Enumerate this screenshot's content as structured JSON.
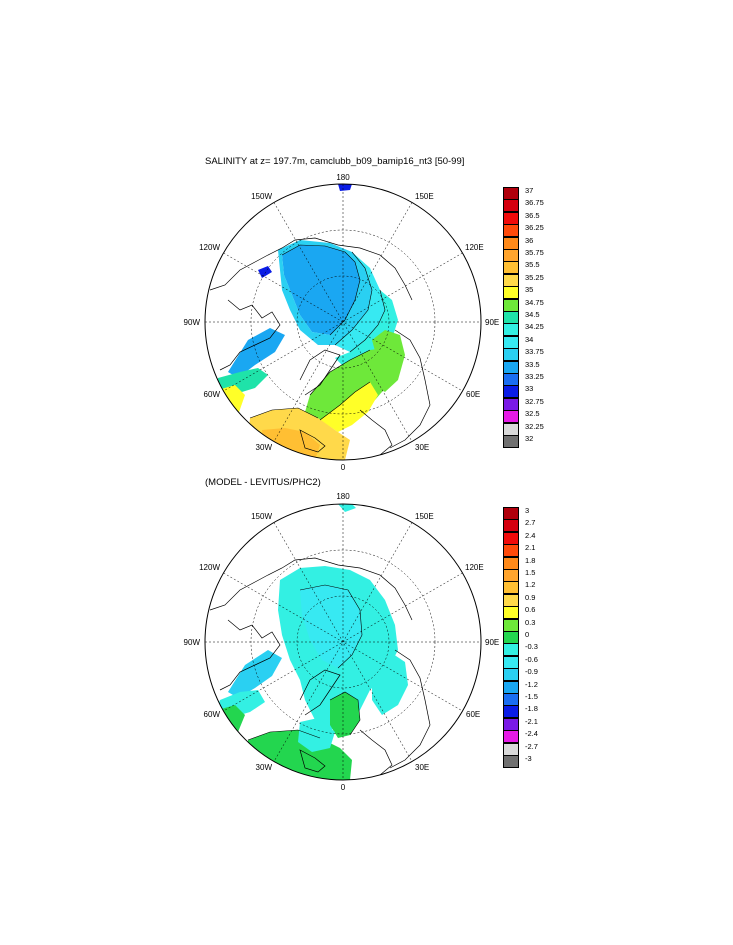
{
  "panels": [
    {
      "id": "top",
      "title": "SALINITY at z= 197.7m, camclubb_b09_bamip16_nt3 [50-99]",
      "longitude_labels": [
        "180",
        "150E",
        "120E",
        "90E",
        "60E",
        "30E",
        "0",
        "30W",
        "60W",
        "90W",
        "120W",
        "150W"
      ],
      "legend": {
        "levels": [
          "37",
          "36.75",
          "36.5",
          "36.25",
          "36",
          "35.75",
          "35.5",
          "35.25",
          "35",
          "34.75",
          "34.5",
          "34.25",
          "34",
          "33.75",
          "33.5",
          "33.25",
          "33",
          "32.75",
          "32.5",
          "32.25",
          "32"
        ],
        "colors": [
          "#b0000c",
          "#d4000f",
          "#f00b0b",
          "#ff4a0a",
          "#ff8a1a",
          "#ffa42d",
          "#ffbf33",
          "#ffd94a",
          "#ffff28",
          "#6ee83a",
          "#1fe3a9",
          "#33f0e3",
          "#37e9f2",
          "#2ad0f2",
          "#1aa7f2",
          "#1a6ef2",
          "#0a1ce6",
          "#7a1ae6",
          "#e61ae6",
          "#d9d9d9",
          "#707070"
        ]
      }
    },
    {
      "id": "bottom",
      "title": "(MODEL - LEVITUS/PHC2)",
      "longitude_labels": [
        "180",
        "150E",
        "120E",
        "90E",
        "60E",
        "30E",
        "0",
        "30W",
        "60W",
        "90W",
        "120W",
        "150W"
      ],
      "legend": {
        "levels": [
          "3",
          "2.7",
          "2.4",
          "2.1",
          "1.8",
          "1.5",
          "1.2",
          "0.9",
          "0.6",
          "0.3",
          "0",
          "-0.3",
          "-0.6",
          "-0.9",
          "-1.2",
          "-1.5",
          "-1.8",
          "-2.1",
          "-2.4",
          "-2.7",
          "-3"
        ],
        "colors": [
          "#b0000c",
          "#d4000f",
          "#f00b0b",
          "#ff4a0a",
          "#ff8a1a",
          "#ffa42d",
          "#ffbf33",
          "#ffd94a",
          "#ffff28",
          "#6ee83a",
          "#23d64f",
          "#33f0e3",
          "#37e9f2",
          "#2ad0f2",
          "#1aa7f2",
          "#1a6ef2",
          "#0a1ce6",
          "#7a1ae6",
          "#e61ae6",
          "#d9d9d9",
          "#707070"
        ]
      }
    }
  ]
}
